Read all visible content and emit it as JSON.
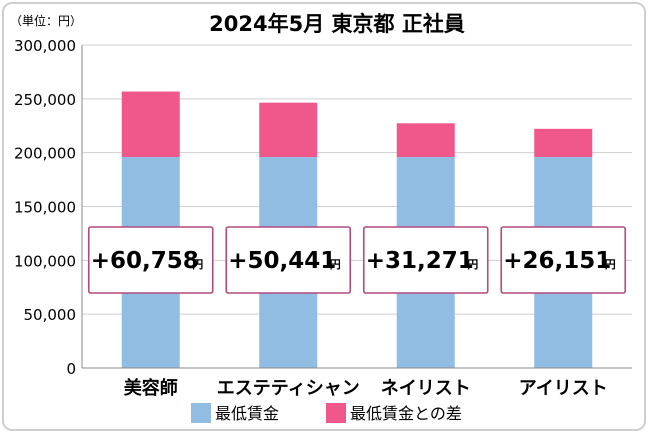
{
  "chart_data": {
    "type": "bar",
    "stacked": true,
    "title": "2024年5月 東京都 正社員",
    "unit_label": "（単位：円）",
    "categories": [
      "美容師",
      "エステティシャン",
      "ネイリスト",
      "アイリスト"
    ],
    "series": [
      {
        "name": "最低賃金",
        "values": [
          196000,
          196000,
          196000,
          196000
        ],
        "color": "#92bde2"
      },
      {
        "name": "最低賃金との差",
        "values": [
          60758,
          50441,
          31271,
          26151
        ],
        "color": "#f0578a"
      }
    ],
    "difference_labels": [
      {
        "number": "+60,758",
        "unit": "円"
      },
      {
        "number": "+50,441",
        "unit": "円"
      },
      {
        "number": "+31,271",
        "unit": "円"
      },
      {
        "number": "+26,151",
        "unit": "円"
      }
    ],
    "ylim": [
      0,
      300000
    ],
    "yticks": [
      "0",
      "50,000",
      "100,000",
      "150,000",
      "200,000",
      "250,000",
      "300,000"
    ],
    "ytick_values": [
      0,
      50000,
      100000,
      150000,
      200000,
      250000,
      300000
    ],
    "grid": true,
    "legend_position": "bottom",
    "colors": {
      "label_box_border": "#b24a7d",
      "axis": "#888888",
      "grid": "#cfcfcf"
    }
  }
}
